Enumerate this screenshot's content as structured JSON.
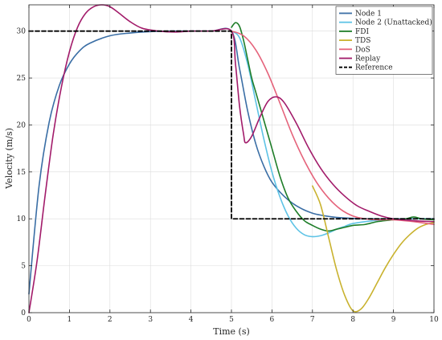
{
  "chart_data": {
    "type": "line",
    "xlabel": "Time (s)",
    "ylabel": "Velocity (m/s)",
    "xlim": [
      0,
      10
    ],
    "ylim": [
      0,
      32.8
    ],
    "xticks": [
      0,
      1,
      2,
      3,
      4,
      5,
      6,
      7,
      8,
      9,
      10
    ],
    "yticks": [
      0,
      5,
      10,
      15,
      20,
      25,
      30
    ],
    "grid": true,
    "legend_position": "top-right",
    "series": [
      {
        "name": "Node 1",
        "color": "#3a6ea5",
        "style": "solid",
        "x": [
          0,
          0.25,
          0.5,
          0.75,
          1.0,
          1.25,
          1.5,
          2.0,
          2.5,
          3.0,
          3.5,
          4.0,
          4.5,
          5.0,
          5.2,
          5.4,
          5.6,
          5.8,
          6.0,
          6.3,
          6.6,
          7.0,
          7.5,
          8.0,
          8.5,
          9.0,
          10.0
        ],
        "y": [
          2.0,
          13.5,
          20.3,
          24.2,
          26.5,
          27.9,
          28.7,
          29.5,
          29.8,
          29.95,
          30.0,
          30.0,
          30.0,
          30.0,
          26.0,
          21.5,
          18.0,
          15.6,
          13.9,
          12.4,
          11.4,
          10.6,
          10.2,
          10.05,
          10.0,
          10.0,
          10.0
        ]
      },
      {
        "name": "Node 2 (Unattacked)",
        "color": "#5ec3e6",
        "style": "solid",
        "x": [
          5.0,
          5.2,
          5.4,
          5.6,
          5.8,
          6.0,
          6.2,
          6.4,
          6.6,
          6.8,
          7.0,
          7.2,
          7.4,
          7.6,
          7.8,
          8.0,
          8.5,
          9.0,
          9.5,
          10.0
        ],
        "y": [
          30.0,
          29.3,
          26.5,
          22.5,
          18.5,
          15.0,
          12.3,
          10.3,
          9.0,
          8.3,
          8.1,
          8.2,
          8.5,
          8.9,
          9.2,
          9.5,
          9.8,
          9.95,
          10.0,
          10.0
        ]
      },
      {
        "name": "FDI",
        "color": "#1e7d28",
        "style": "solid",
        "x": [
          5.0,
          5.1,
          5.2,
          5.3,
          5.4,
          5.5,
          5.6,
          5.7,
          5.8,
          6.0,
          6.2,
          6.4,
          6.6,
          6.8,
          7.0,
          7.2,
          7.4,
          7.6,
          7.8,
          8.0,
          8.3,
          8.6,
          9.0,
          9.3,
          9.5,
          9.7,
          10.0
        ],
        "y": [
          30.4,
          30.9,
          30.5,
          29.0,
          27.0,
          25.0,
          23.5,
          22.0,
          20.5,
          17.5,
          14.5,
          12.2,
          10.8,
          9.8,
          9.3,
          8.9,
          8.7,
          8.9,
          9.1,
          9.3,
          9.4,
          9.7,
          9.9,
          10.0,
          10.2,
          10.0,
          9.9
        ]
      },
      {
        "name": "TDS",
        "color": "#c9b22e",
        "style": "solid",
        "x": [
          7.0,
          7.2,
          7.4,
          7.6,
          7.8,
          8.0,
          8.2,
          8.4,
          8.6,
          8.8,
          9.0,
          9.2,
          9.4,
          9.6,
          9.8,
          10.0
        ],
        "y": [
          13.5,
          11.5,
          8.0,
          4.5,
          1.8,
          0.2,
          0.4,
          1.6,
          3.2,
          4.8,
          6.2,
          7.4,
          8.3,
          9.0,
          9.4,
          9.6
        ]
      },
      {
        "name": "DoS",
        "color": "#e5637b",
        "style": "solid",
        "x": [
          5.0,
          5.3,
          5.6,
          5.9,
          6.2,
          6.5,
          6.8,
          7.1,
          7.4,
          7.7,
          8.0,
          8.3,
          8.6,
          9.0,
          9.5,
          10.0
        ],
        "y": [
          30.0,
          29.5,
          28.0,
          25.5,
          22.3,
          19.0,
          16.2,
          13.9,
          12.2,
          11.0,
          10.3,
          10.0,
          9.9,
          9.9,
          9.7,
          9.4
        ]
      },
      {
        "name": "Replay",
        "color": "#a21b6a",
        "style": "solid",
        "x": [
          0,
          0.2,
          0.4,
          0.6,
          0.8,
          1.0,
          1.2,
          1.4,
          1.6,
          1.8,
          2.0,
          2.2,
          2.5,
          2.8,
          3.2,
          3.6,
          4.0,
          4.5,
          5.0,
          5.1,
          5.2,
          5.3,
          5.35,
          5.5,
          5.7,
          5.9,
          6.1,
          6.3,
          6.6,
          6.9,
          7.2,
          7.5,
          7.8,
          8.1,
          8.4,
          8.7,
          9.0,
          9.5,
          10.0
        ],
        "y": [
          0,
          5.5,
          12.5,
          19.0,
          24.0,
          27.8,
          30.4,
          31.9,
          32.6,
          32.8,
          32.6,
          32.0,
          31.0,
          30.3,
          30.0,
          29.9,
          30.0,
          30.0,
          30.0,
          26.5,
          22.0,
          19.0,
          18.1,
          18.8,
          20.8,
          22.5,
          23.0,
          22.4,
          20.2,
          17.6,
          15.4,
          13.7,
          12.4,
          11.4,
          10.8,
          10.3,
          10.0,
          9.8,
          9.7
        ]
      },
      {
        "name": "Reference",
        "color": "#000000",
        "style": "dashed",
        "x": [
          0,
          5.0,
          5.0,
          10.0
        ],
        "y": [
          30.0,
          30.0,
          10.0,
          10.0
        ]
      }
    ]
  }
}
